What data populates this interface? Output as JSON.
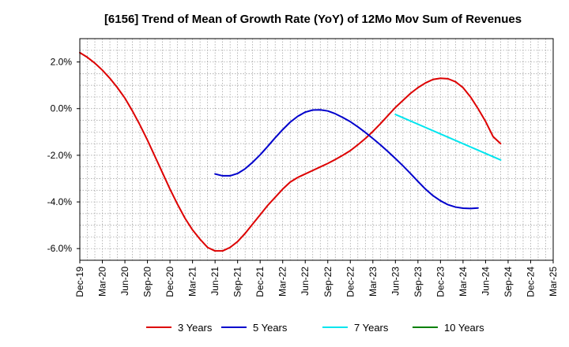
{
  "chart_data": {
    "type": "line",
    "title": "[6156]  Trend of Mean of Growth Rate (YoY) of 12Mo Mov Sum of Revenues",
    "xlabel": "",
    "ylabel": "",
    "x_tick_labels": [
      "Dec-19",
      "Mar-20",
      "Jun-20",
      "Sep-20",
      "Dec-20",
      "Mar-21",
      "Jun-21",
      "Sep-21",
      "Dec-21",
      "Mar-22",
      "Jun-22",
      "Sep-22",
      "Dec-22",
      "Mar-23",
      "Jun-23",
      "Sep-23",
      "Dec-23",
      "Mar-24",
      "Jun-24",
      "Sep-24",
      "Dec-24",
      "Mar-25"
    ],
    "y_ticks": [
      2.0,
      0.0,
      -2.0,
      -4.0,
      -6.0
    ],
    "y_tick_labels": [
      "2.0%",
      "0.0%",
      "-2.0%",
      "-4.0%",
      "-6.0%"
    ],
    "xlim_months": [
      0,
      63
    ],
    "ylim": [
      -6.5,
      3.0
    ],
    "grid": true,
    "legend_position": "bottom",
    "series": [
      {
        "name": "3 Years",
        "color": "#dd0000",
        "points": [
          [
            0,
            2.4
          ],
          [
            1,
            2.2
          ],
          [
            2,
            1.95
          ],
          [
            3,
            1.65
          ],
          [
            4,
            1.3
          ],
          [
            5,
            0.9
          ],
          [
            6,
            0.45
          ],
          [
            7,
            -0.1
          ],
          [
            8,
            -0.7
          ],
          [
            9,
            -1.35
          ],
          [
            10,
            -2.05
          ],
          [
            11,
            -2.75
          ],
          [
            12,
            -3.45
          ],
          [
            13,
            -4.1
          ],
          [
            14,
            -4.7
          ],
          [
            15,
            -5.2
          ],
          [
            16,
            -5.6
          ],
          [
            17,
            -5.95
          ],
          [
            18,
            -6.1
          ],
          [
            19,
            -6.1
          ],
          [
            20,
            -5.95
          ],
          [
            21,
            -5.7
          ],
          [
            22,
            -5.35
          ],
          [
            23,
            -4.95
          ],
          [
            24,
            -4.55
          ],
          [
            25,
            -4.15
          ],
          [
            26,
            -3.8
          ],
          [
            27,
            -3.45
          ],
          [
            28,
            -3.15
          ],
          [
            29,
            -2.95
          ],
          [
            30,
            -2.8
          ],
          [
            31,
            -2.65
          ],
          [
            32,
            -2.5
          ],
          [
            33,
            -2.35
          ],
          [
            34,
            -2.18
          ],
          [
            35,
            -2.0
          ],
          [
            36,
            -1.8
          ],
          [
            37,
            -1.55
          ],
          [
            38,
            -1.28
          ],
          [
            39,
            -0.98
          ],
          [
            40,
            -0.65
          ],
          [
            41,
            -0.3
          ],
          [
            42,
            0.05
          ],
          [
            43,
            0.35
          ],
          [
            44,
            0.65
          ],
          [
            45,
            0.9
          ],
          [
            46,
            1.1
          ],
          [
            47,
            1.25
          ],
          [
            48,
            1.3
          ],
          [
            49,
            1.28
          ],
          [
            50,
            1.15
          ],
          [
            51,
            0.9
          ],
          [
            52,
            0.5
          ],
          [
            53,
            0.0
          ],
          [
            54,
            -0.55
          ],
          [
            55,
            -1.2
          ],
          [
            56,
            -1.5
          ]
        ]
      },
      {
        "name": "5 Years",
        "color": "#0000cc",
        "points": [
          [
            18,
            -2.8
          ],
          [
            19,
            -2.88
          ],
          [
            20,
            -2.88
          ],
          [
            21,
            -2.78
          ],
          [
            22,
            -2.58
          ],
          [
            23,
            -2.3
          ],
          [
            24,
            -1.98
          ],
          [
            25,
            -1.62
          ],
          [
            26,
            -1.25
          ],
          [
            27,
            -0.9
          ],
          [
            28,
            -0.58
          ],
          [
            29,
            -0.33
          ],
          [
            30,
            -0.15
          ],
          [
            31,
            -0.06
          ],
          [
            32,
            -0.05
          ],
          [
            33,
            -0.1
          ],
          [
            34,
            -0.22
          ],
          [
            35,
            -0.38
          ],
          [
            36,
            -0.56
          ],
          [
            37,
            -0.78
          ],
          [
            38,
            -1.02
          ],
          [
            39,
            -1.28
          ],
          [
            40,
            -1.55
          ],
          [
            41,
            -1.84
          ],
          [
            42,
            -2.14
          ],
          [
            43,
            -2.45
          ],
          [
            44,
            -2.78
          ],
          [
            45,
            -3.12
          ],
          [
            46,
            -3.45
          ],
          [
            47,
            -3.73
          ],
          [
            48,
            -3.95
          ],
          [
            49,
            -4.12
          ],
          [
            50,
            -4.22
          ],
          [
            51,
            -4.27
          ],
          [
            52,
            -4.28
          ],
          [
            53,
            -4.26
          ]
        ]
      },
      {
        "name": "7 Years",
        "color": "#00e5ee",
        "points": [
          [
            42,
            -0.25
          ],
          [
            56,
            -2.2
          ]
        ]
      },
      {
        "name": "10 Years",
        "color": "#008000",
        "points": []
      }
    ]
  }
}
